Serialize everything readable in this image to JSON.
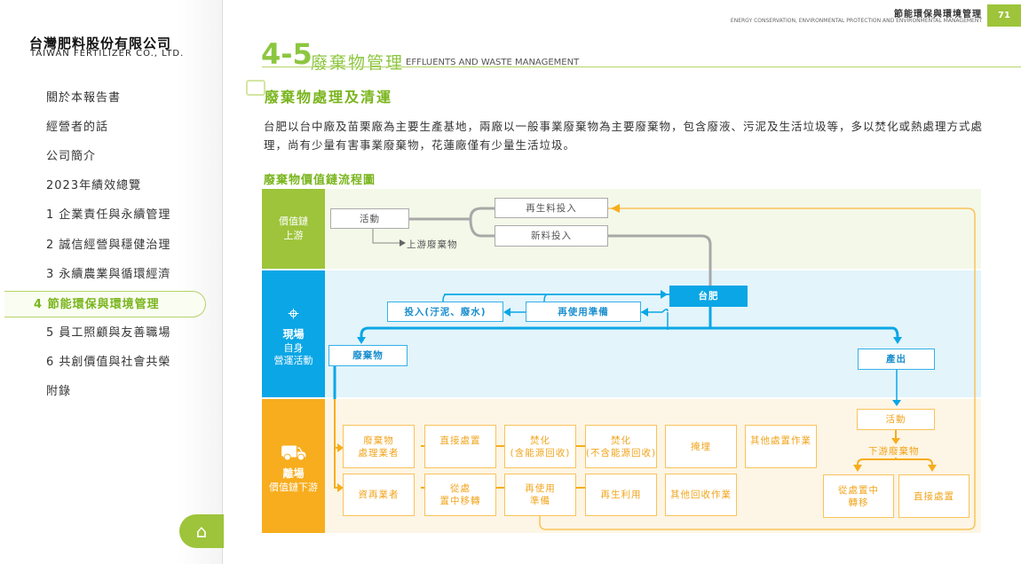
{
  "header": {
    "section_cn": "節能環保與環境管理",
    "section_en": "ENERGY CONSERVATION, ENVIRONMENTAL PROTECTION AND ENVIRONMENTAL MANAGEMENT",
    "page": "71"
  },
  "logo": {
    "cn": "台灣肥料股份有限公司",
    "en": "TAIWAN FERTILIZER CO., LTD."
  },
  "sidebar": {
    "items": [
      {
        "label": "關於本報告書"
      },
      {
        "label": "經營者的話"
      },
      {
        "label": "公司簡介"
      },
      {
        "label": "2023年績效總覽"
      },
      {
        "label": "1 企業責任與永續管理"
      },
      {
        "label": "2 誠信經營與穩健治理"
      },
      {
        "label": "3 永續農業與循環經濟"
      },
      {
        "label": "4 節能環保與環境管理",
        "active": true
      },
      {
        "label": "5 員工照顧與友善職場"
      },
      {
        "label": "6 共創價值與社會共榮"
      },
      {
        "label": "附錄"
      }
    ],
    "home_icon": "home-icon"
  },
  "title": {
    "number": "4-5",
    "cn": "廢棄物管理",
    "en": "EFFLUENTS AND WASTE MANAGEMENT"
  },
  "subtitle": "廢棄物處理及清運",
  "paragraph": "台肥以台中廠及苗栗廠為主要生產基地，兩廠以一般事業廢棄物為主要廢棄物，包含廢液、污泥及生活垃圾等，多以焚化或熱處理方式處理，尚有少量有害事業廢棄物，花蓮廠僅有少量生活垃圾。",
  "figure": {
    "title": "廢棄物價值鏈流程圖",
    "colors": {
      "upstream": "#9dc43a",
      "onsite": "#0aa6e6",
      "downstream": "#f7ad1d"
    },
    "upstream": {
      "label1": "價值鏈",
      "label2": "上游",
      "activity": "活動",
      "waste": "上游廢棄物",
      "recycled_input": "再生料投入",
      "new_input": "新料投入"
    },
    "onsite": {
      "label1": "現場",
      "label2": "自身",
      "label3": "營運活動",
      "company": "台肥",
      "input": "投入(汙泥、廢水)",
      "reuse_prep": "再使用準備",
      "waste": "廢棄物",
      "output": "產出"
    },
    "downstream": {
      "label1": "離場",
      "label2": "價值鏈下游",
      "row1": [
        "廢棄物\n處理業者",
        "直接處置",
        "焚化\n(含能源回收)",
        "焚化\n(不含能源回收)",
        "掩埋",
        "其他處置作業"
      ],
      "row2": [
        "資再業者",
        "從處\n置中移轉",
        "再使用\n準備",
        "再生利用",
        "其他回收作業"
      ],
      "activity": "活動",
      "waste": "下游廢棄物",
      "diverted": "從處置中\n轉移",
      "direct": "直接處置"
    }
  }
}
